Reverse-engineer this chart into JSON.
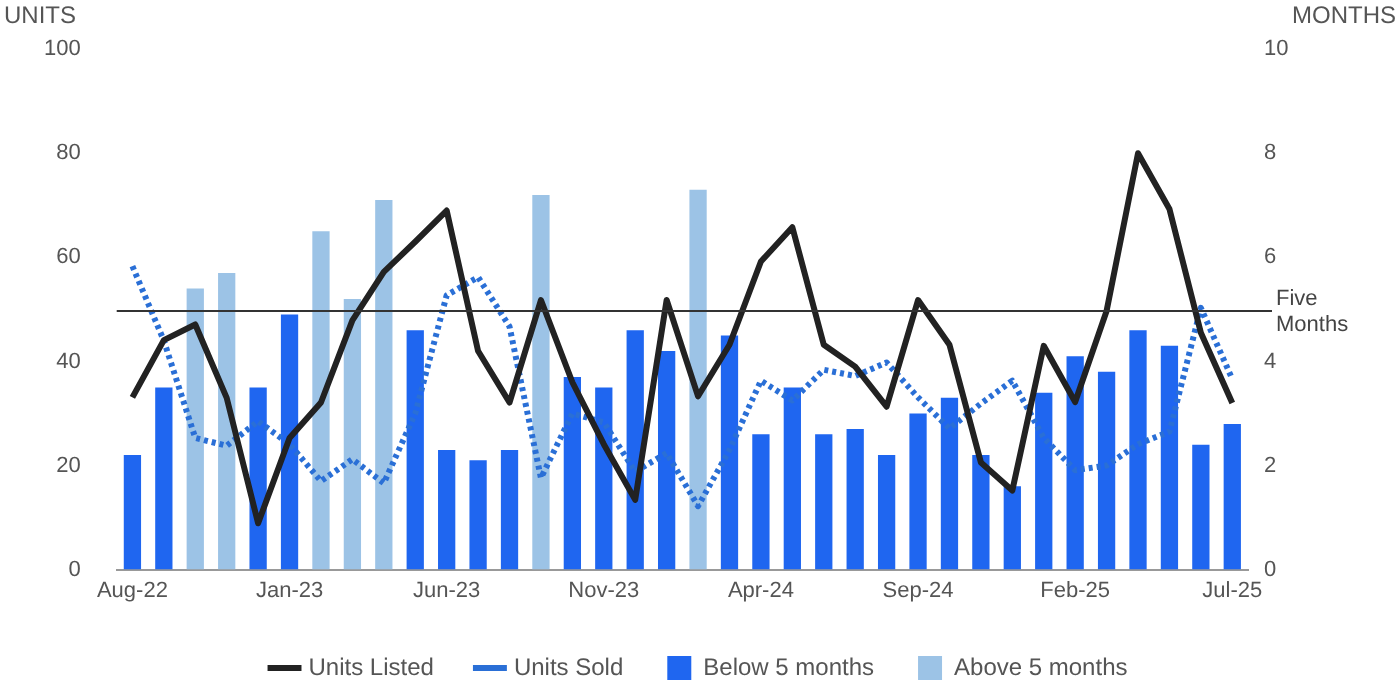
{
  "chart_data": {
    "type": "bar",
    "ylabel": "UNITS",
    "y2label": "MONTHS",
    "categories": [
      "Aug-22",
      null,
      null,
      null,
      null,
      "Jan-23",
      null,
      null,
      null,
      null,
      "Jun-23",
      null,
      null,
      null,
      null,
      "Nov-23",
      null,
      null,
      null,
      null,
      "Apr-24",
      null,
      null,
      null,
      null,
      "Sep-24",
      null,
      null,
      null,
      null,
      "Feb-25",
      null,
      null,
      null,
      null,
      "Jul-25"
    ],
    "series": [
      {
        "name": "Units Listed",
        "type": "line",
        "color": "#222222",
        "line_style": "solid",
        "values": [
          33.1,
          44.1,
          47.1,
          33,
          8.9,
          25.3,
          32.1,
          47.9,
          57.2,
          63,
          69,
          42,
          32.1,
          51.8,
          36,
          24.1,
          13.4,
          51.8,
          33.3,
          43.2,
          59.2,
          65.8,
          43.2,
          39,
          31.3,
          51.8,
          43.2,
          20.6,
          15.2,
          43,
          32.2,
          49.7,
          80,
          69.3,
          45.5,
          32
        ]
      },
      {
        "name": "Units Sold",
        "type": "line",
        "color": "#2a6fd6",
        "line_style": "dotted",
        "values": [
          58.3,
          44,
          25.3,
          23.8,
          28.5,
          24.1,
          17,
          21.2,
          16.6,
          30,
          52.7,
          56.2,
          46.7,
          17.6,
          30,
          28.3,
          18.8,
          22.4,
          12.2,
          23,
          36.3,
          32.5,
          38.4,
          37.2,
          39.8,
          33.1,
          27.1,
          31.9,
          36.3,
          25.3,
          19.1,
          20,
          24.1,
          26.5,
          50.3,
          36.6
        ]
      },
      {
        "name": "Below 5 months",
        "axis": "y2",
        "color": "#1f66f0",
        "values": [
          2.2,
          3.5,
          null,
          null,
          3.5,
          4.9,
          null,
          null,
          null,
          4.6,
          2.3,
          2.1,
          2.3,
          null,
          3.7,
          3.5,
          4.6,
          4.2,
          null,
          4.5,
          2.6,
          3.5,
          2.6,
          2.7,
          2.2,
          3.0,
          3.3,
          2.2,
          1.6,
          3.4,
          4.1,
          3.8,
          4.6,
          4.3,
          2.4,
          2.8
        ]
      },
      {
        "name": "Above 5 months",
        "axis": "y2",
        "color": "#9cc3e6",
        "values": [
          null,
          null,
          5.4,
          5.7,
          null,
          null,
          6.5,
          5.2,
          7.1,
          null,
          null,
          null,
          null,
          7.2,
          null,
          null,
          null,
          null,
          7.3,
          null,
          null,
          null,
          null,
          null,
          null,
          null,
          null,
          null,
          null,
          null,
          null,
          null,
          null,
          null,
          null,
          null
        ]
      }
    ],
    "ylim": [
      0,
      100
    ],
    "yticks": [
      0,
      20,
      40,
      60,
      80,
      100
    ],
    "y2lim": [
      0,
      10
    ],
    "y2ticks": [
      0,
      2,
      4,
      6,
      8,
      10
    ],
    "ref_lines": [
      {
        "axis": "y2",
        "value": 5,
        "label": "Five Months",
        "color": "#333333"
      }
    ],
    "grid": false,
    "legend": "bottom"
  }
}
